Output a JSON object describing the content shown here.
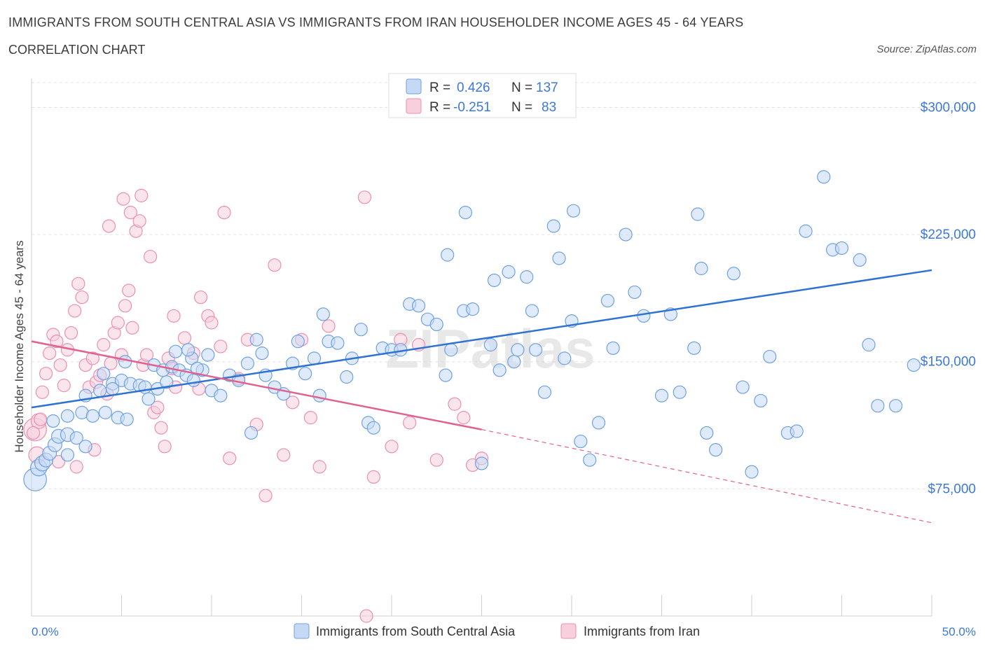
{
  "title": "IMMIGRANTS FROM SOUTH CENTRAL ASIA VS IMMIGRANTS FROM IRAN HOUSEHOLDER INCOME AGES 45 - 64 YEARS",
  "subtitle": "CORRELATION CHART",
  "source": "Source: ZipAtlas.com",
  "watermark": "ZIPatlas",
  "colors": {
    "blue": "#6fa1e3",
    "blue_fill": "#c5d9f5",
    "blue_line": "#2e72d2",
    "pink": "#ec8fb0",
    "pink_fill": "#f8cfdd",
    "pink_line": "#e0628f",
    "axis_label_blue": "#3c78d8"
  },
  "chart_data": {
    "type": "scatter",
    "xlabel": "",
    "ylabel": "Householder Income Ages 45 - 64 years",
    "xlim": [
      0,
      50
    ],
    "ylim": [
      0,
      320000
    ],
    "x_tick_labels": [
      "0.0%",
      "50.0%"
    ],
    "y_ticks": [
      75000,
      150000,
      225000,
      300000
    ],
    "y_tick_labels": [
      "$75,000",
      "$150,000",
      "$225,000",
      "$300,000"
    ],
    "legend_stats": [
      {
        "r_label": "R =",
        "r": "0.426",
        "n_label": "N =",
        "n": "137"
      },
      {
        "r_label": "R =",
        "r": "-0.251",
        "n_label": "N =",
        "n": "83"
      }
    ],
    "series": [
      {
        "name": "Immigrants from South Central Asia",
        "trend": {
          "x0": 0,
          "y0": 123000,
          "x1": 50,
          "y1": 204000
        },
        "points": [
          [
            0.2,
            80500
          ],
          [
            0.4,
            87500
          ],
          [
            0.6,
            90000
          ],
          [
            0.8,
            92000
          ],
          [
            1.0,
            96000
          ],
          [
            1.3,
            101000
          ],
          [
            1.5,
            106000
          ],
          [
            2.0,
            107000
          ],
          [
            2.5,
            105000
          ],
          [
            3.0,
            100000
          ],
          [
            1.2,
            115000
          ],
          [
            2.0,
            118000
          ],
          [
            2.8,
            120000
          ],
          [
            3.4,
            118000
          ],
          [
            4.1,
            120000
          ],
          [
            4.8,
            117000
          ],
          [
            5.3,
            116000
          ],
          [
            3.0,
            130000
          ],
          [
            3.8,
            133000
          ],
          [
            4.5,
            137000
          ],
          [
            5.0,
            139000
          ],
          [
            5.5,
            137000
          ],
          [
            6.0,
            136000
          ],
          [
            6.3,
            135000
          ],
          [
            7.0,
            134000
          ],
          [
            7.5,
            138000
          ],
          [
            4.0,
            143000
          ],
          [
            4.5,
            134000
          ],
          [
            5.2,
            150000
          ],
          [
            6.8,
            148000
          ],
          [
            7.3,
            145000
          ],
          [
            7.8,
            147000
          ],
          [
            8.2,
            145000
          ],
          [
            8.6,
            142000
          ],
          [
            9.0,
            139000
          ],
          [
            9.5,
            145000
          ],
          [
            8.0,
            156000
          ],
          [
            8.9,
            152000
          ],
          [
            9.2,
            146000
          ],
          [
            9.8,
            154000
          ],
          [
            10.0,
            133000
          ],
          [
            10.5,
            130000
          ],
          [
            11.0,
            142000
          ],
          [
            11.5,
            139000
          ],
          [
            12.0,
            149000
          ],
          [
            12.5,
            163000
          ],
          [
            12.8,
            155000
          ],
          [
            13.0,
            142000
          ],
          [
            13.5,
            135000
          ],
          [
            14.0,
            131000
          ],
          [
            14.5,
            149000
          ],
          [
            14.8,
            162000
          ],
          [
            15.2,
            143000
          ],
          [
            15.7,
            152000
          ],
          [
            16.0,
            130000
          ],
          [
            16.5,
            162000
          ],
          [
            17.0,
            161000
          ],
          [
            17.5,
            141000
          ],
          [
            17.8,
            152000
          ],
          [
            18.3,
            169000
          ],
          [
            18.7,
            114000
          ],
          [
            19.0,
            111000
          ],
          [
            19.5,
            158000
          ],
          [
            20.0,
            157000
          ],
          [
            20.5,
            157000
          ],
          [
            21.0,
            184000
          ],
          [
            21.5,
            183000
          ],
          [
            22.0,
            175000
          ],
          [
            22.5,
            172000
          ],
          [
            23.0,
            142000
          ],
          [
            23.3,
            157000
          ],
          [
            24.0,
            180000
          ],
          [
            24.5,
            181000
          ],
          [
            25.0,
            90000
          ],
          [
            25.5,
            160000
          ],
          [
            26.0,
            145000
          ],
          [
            26.5,
            203000
          ],
          [
            26.8,
            150000
          ],
          [
            27.0,
            157000
          ],
          [
            27.5,
            200000
          ],
          [
            27.8,
            180000
          ],
          [
            28.5,
            132000
          ],
          [
            29.0,
            230000
          ],
          [
            29.3,
            211000
          ],
          [
            29.6,
            152000
          ],
          [
            30.0,
            174000
          ],
          [
            30.5,
            103000
          ],
          [
            31.0,
            92000
          ],
          [
            31.5,
            114000
          ],
          [
            32.0,
            186000
          ],
          [
            32.3,
            158000
          ],
          [
            33.0,
            225000
          ],
          [
            33.5,
            191000
          ],
          [
            34.0,
            177000
          ],
          [
            35.0,
            130000
          ],
          [
            35.5,
            178000
          ],
          [
            36.0,
            132000
          ],
          [
            36.8,
            158000
          ],
          [
            37.0,
            237000
          ],
          [
            37.5,
            108000
          ],
          [
            38.0,
            98000
          ],
          [
            39.0,
            202000
          ],
          [
            39.5,
            135000
          ],
          [
            40.0,
            85000
          ],
          [
            40.5,
            127000
          ],
          [
            41.0,
            153000
          ],
          [
            42.0,
            108000
          ],
          [
            42.5,
            109000
          ],
          [
            43.0,
            227000
          ],
          [
            44.0,
            259000
          ],
          [
            44.5,
            216000
          ],
          [
            45.0,
            217000
          ],
          [
            46.0,
            210000
          ],
          [
            46.5,
            160000
          ],
          [
            47.0,
            124000
          ],
          [
            48.0,
            124000
          ],
          [
            49.0,
            148000
          ],
          [
            37.2,
            205000
          ],
          [
            30.1,
            239000
          ],
          [
            25.7,
            198000
          ],
          [
            24.1,
            238000
          ],
          [
            23.1,
            213000
          ],
          [
            16.2,
            178000
          ],
          [
            6.5,
            128000
          ],
          [
            2.0,
            95000
          ],
          [
            8.7,
            157000
          ],
          [
            12.2,
            108000
          ],
          [
            28.0,
            157000
          ]
        ],
        "sizes": [
          1.8,
          1.3,
          1.2,
          1.1,
          1.1,
          1.1,
          1.1,
          1.1,
          1.0,
          1.0
        ]
      },
      {
        "name": "Immigrants from Iran",
        "trend": {
          "x0": 0,
          "y0": 162000,
          "x1": 25,
          "y1": 110000,
          "dash_to_x": 50,
          "dash_to_y": 55000
        },
        "points": [
          [
            0.2,
            110000
          ],
          [
            0.3,
            95000
          ],
          [
            0.4,
            115000
          ],
          [
            0.6,
            132000
          ],
          [
            0.8,
            143000
          ],
          [
            1.0,
            155000
          ],
          [
            1.2,
            166000
          ],
          [
            1.4,
            162000
          ],
          [
            1.6,
            148000
          ],
          [
            1.8,
            136000
          ],
          [
            2.0,
            157000
          ],
          [
            2.2,
            167000
          ],
          [
            2.4,
            180000
          ],
          [
            2.6,
            196000
          ],
          [
            2.8,
            188000
          ],
          [
            3.0,
            148000
          ],
          [
            3.2,
            135000
          ],
          [
            3.4,
            152000
          ],
          [
            3.6,
            138000
          ],
          [
            3.8,
            142000
          ],
          [
            4.0,
            160000
          ],
          [
            4.2,
            131000
          ],
          [
            4.4,
            149000
          ],
          [
            4.6,
            167000
          ],
          [
            4.8,
            173000
          ],
          [
            5.0,
            154000
          ],
          [
            5.2,
            183000
          ],
          [
            5.4,
            192000
          ],
          [
            5.6,
            170000
          ],
          [
            5.8,
            227000
          ],
          [
            6.0,
            233000
          ],
          [
            6.2,
            148000
          ],
          [
            6.4,
            154000
          ],
          [
            6.6,
            212000
          ],
          [
            6.8,
            120000
          ],
          [
            7.0,
            123000
          ],
          [
            7.2,
            111000
          ],
          [
            7.4,
            100000
          ],
          [
            7.6,
            152000
          ],
          [
            7.8,
            146000
          ],
          [
            8.0,
            135000
          ],
          [
            8.5,
            164000
          ],
          [
            9.0,
            155000
          ],
          [
            9.3,
            134000
          ],
          [
            9.8,
            177000
          ],
          [
            10.0,
            173000
          ],
          [
            10.5,
            159000
          ],
          [
            11.0,
            93000
          ],
          [
            11.5,
            140000
          ],
          [
            12.0,
            163000
          ],
          [
            12.5,
            113000
          ],
          [
            13.0,
            71000
          ],
          [
            13.5,
            207000
          ],
          [
            14.0,
            95000
          ],
          [
            14.5,
            126000
          ],
          [
            15.0,
            163000
          ],
          [
            15.5,
            117000
          ],
          [
            16.0,
            88000
          ],
          [
            16.5,
            171000
          ],
          [
            18.5,
            247000
          ],
          [
            19.0,
            82000
          ],
          [
            20.0,
            100000
          ],
          [
            20.5,
            163000
          ],
          [
            21.0,
            114000
          ],
          [
            21.5,
            160000
          ],
          [
            22.5,
            92000
          ],
          [
            23.5,
            125000
          ],
          [
            24.0,
            117000
          ],
          [
            24.5,
            89000
          ],
          [
            25.0,
            93000
          ],
          [
            3.5,
            98000
          ],
          [
            2.5,
            88000
          ],
          [
            1.5,
            91000
          ],
          [
            4.3,
            230000
          ],
          [
            5.1,
            246000
          ],
          [
            6.1,
            248000
          ],
          [
            5.5,
            238000
          ],
          [
            9.4,
            188000
          ],
          [
            10.7,
            238000
          ],
          [
            18.6,
            0
          ],
          [
            0.1,
            108000
          ],
          [
            0.5,
            116000
          ],
          [
            7.9,
            177000
          ]
        ],
        "sizes": [
          1.8,
          1.3,
          1.2,
          1.0,
          1.0,
          1.0,
          1.0,
          1.0,
          1.0,
          1.0
        ]
      }
    ]
  }
}
